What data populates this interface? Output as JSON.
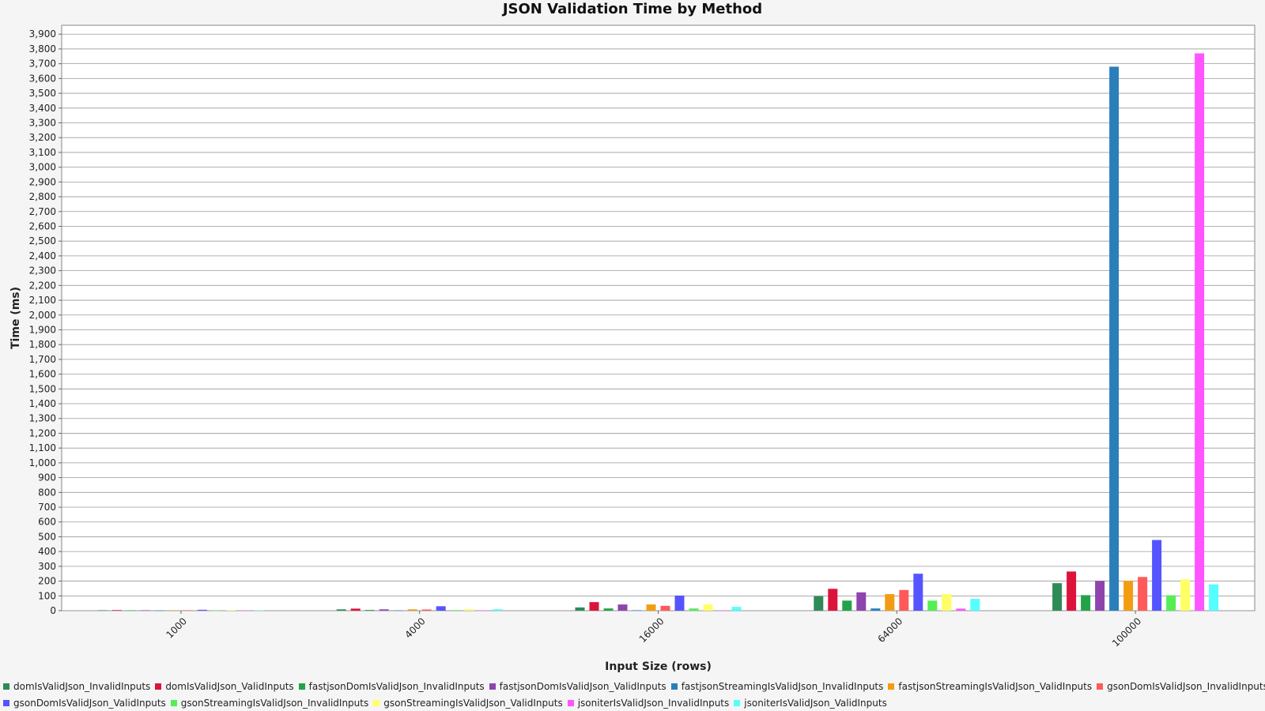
{
  "chart_data": {
    "type": "bar",
    "title": "JSON Validation Time by Method",
    "xlabel": "Input Size (rows)",
    "ylabel": "Time (ms)",
    "ylim": [
      0,
      3960
    ],
    "y_tick_step": 100,
    "grid": true,
    "legend_position": "bottom",
    "categories": [
      "1000",
      "4000",
      "16000",
      "64000",
      "100000"
    ],
    "series": [
      {
        "name": "domIsValidJson_InvalidInputs",
        "color": "#2e8b57",
        "values": [
          3,
          9,
          22,
          98,
          186
        ]
      },
      {
        "name": "domIsValidJson_ValidInputs",
        "color": "#dc143c",
        "values": [
          4,
          14,
          58,
          148,
          265
        ]
      },
      {
        "name": "fastjsonDomIsValidJson_InvalidInputs",
        "color": "#22a34a",
        "values": [
          2,
          5,
          15,
          68,
          105
        ]
      },
      {
        "name": "fastjsonDomIsValidJson_ValidInputs",
        "color": "#8e44ad",
        "values": [
          3,
          9,
          42,
          124,
          202
        ]
      },
      {
        "name": "fastjsonStreamingIsValidJson_InvalidInputs",
        "color": "#2a7fba",
        "values": [
          1,
          2,
          3,
          15,
          3680
        ]
      },
      {
        "name": "fastjsonStreamingIsValidJson_ValidInputs",
        "color": "#f39c12",
        "values": [
          3,
          9,
          42,
          112,
          202
        ]
      },
      {
        "name": "gsonDomIsValidJson_InvalidInputs",
        "color": "#ff5a5a",
        "values": [
          3,
          8,
          33,
          140,
          228
        ]
      },
      {
        "name": "gsonDomIsValidJson_ValidInputs",
        "color": "#5555ff",
        "values": [
          6,
          30,
          102,
          250,
          478
        ]
      },
      {
        "name": "gsonStreamingIsValidJson_InvalidInputs",
        "color": "#55ee55",
        "values": [
          1,
          4,
          15,
          68,
          104
        ]
      },
      {
        "name": "gsonStreamingIsValidJson_ValidInputs",
        "color": "#ffff66",
        "values": [
          3,
          10,
          42,
          112,
          212
        ]
      },
      {
        "name": "jsoniterIsValidJson_InvalidInputs",
        "color": "#ff55ff",
        "values": [
          1,
          1,
          2,
          14,
          3770
        ]
      },
      {
        "name": "jsoniterIsValidJson_ValidInputs",
        "color": "#55ffff",
        "values": [
          2,
          10,
          26,
          80,
          178
        ]
      }
    ]
  }
}
